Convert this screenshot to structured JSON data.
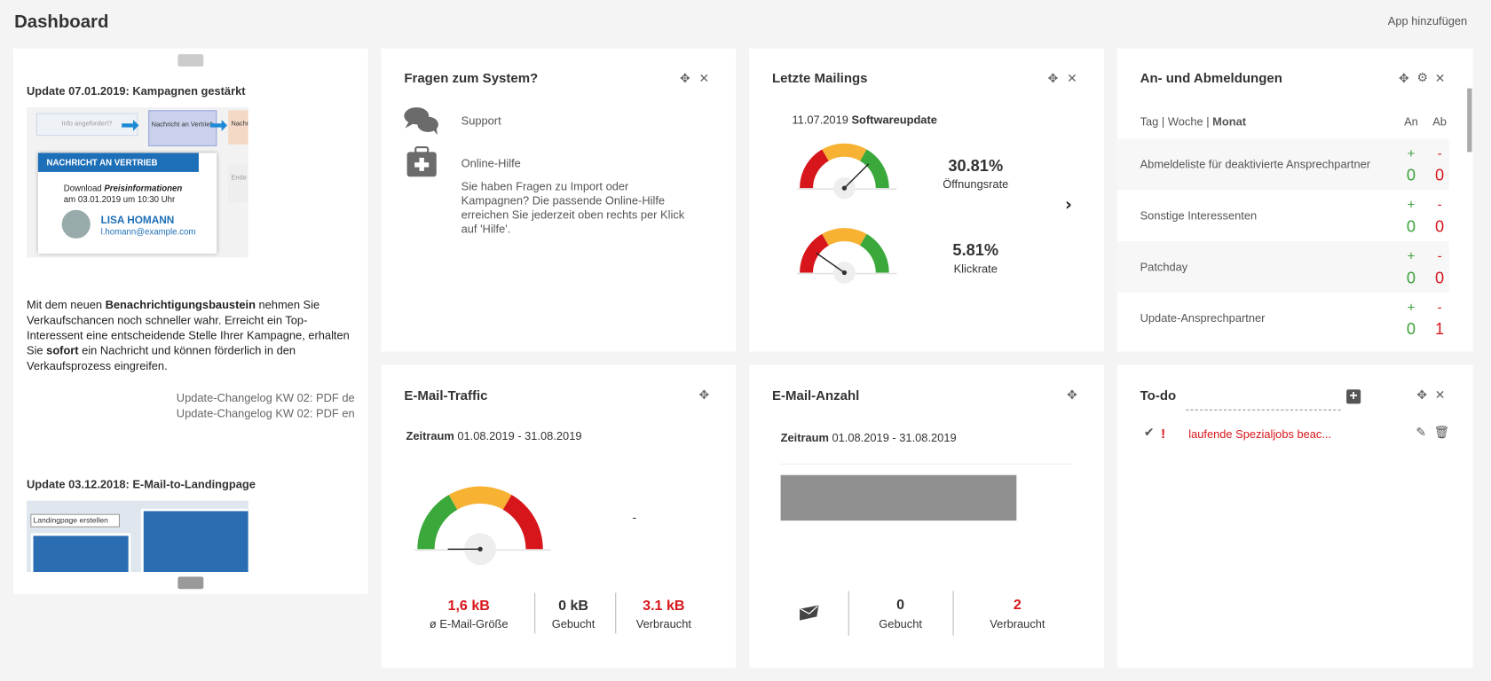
{
  "header": {
    "title": "Dashboard",
    "add_app": "App hinzufügen"
  },
  "news": {
    "items": [
      {
        "title": "Update 07.01.2019: Kampagnen gestärkt",
        "image": {
          "flow": [
            "Info angefordert?",
            "Nachricht an Vertrieb",
            "Nachr",
            "Ende"
          ],
          "box_title": "NACHRICHT AN VERTRIEB",
          "download": "Download",
          "download_em": "Preisinformationen",
          "date": "am 03.01.2019 um 10:30 Uhr",
          "name": "LISA HOMANN",
          "email": "l.homann@example.com"
        },
        "body": [
          "Mit dem neuen ",
          "Benachrichtigungsbaustein",
          " nehmen Sie Verkaufschancen noch schneller wahr. Erreicht ein Top-Interessent eine entscheidende Stelle Ihrer Kampagne, erhalten Sie ",
          "sofort",
          " ein Nachricht und können förderlich in den Verkaufsprozess eingreifen."
        ],
        "links": [
          "Update-Changelog KW 02: PDF de",
          "Update-Changelog KW 02: PDF en"
        ]
      },
      {
        "title": "Update 03.12.2018: E-Mail-to-Landingpage",
        "image_text": "Landingpage erstellen"
      }
    ]
  },
  "help": {
    "title": "Fragen zum System?",
    "support": "Support",
    "online_help": "Online-Hilfe",
    "description": "Sie haben Fragen zu Import oder Kampagnen? Die passende Online-Hilfe erreichen Sie jederzeit oben rechts per Klick auf 'Hilfe'."
  },
  "mailings": {
    "title": "Letzte Mailings",
    "date": "11.07.2019",
    "name": "Softwareupdate",
    "metrics": [
      {
        "value": "30.81%",
        "label": "Öffnungsrate"
      },
      {
        "value": "5.81%",
        "label": "Klickrate"
      }
    ]
  },
  "subscriptions": {
    "title": "An- und Abmeldungen",
    "periods": [
      "Tag",
      "Woche",
      "Monat"
    ],
    "separator": "|",
    "columns": [
      "An",
      "Ab"
    ],
    "signs": [
      "+",
      "-"
    ],
    "rows": [
      {
        "name": "Abmeldeliste für deaktivierte Ansprechpartner",
        "an": "0",
        "ab": "0"
      },
      {
        "name": "Sonstige Interessenten",
        "an": "0",
        "ab": "0"
      },
      {
        "name": "Patchday",
        "an": "0",
        "ab": "0"
      },
      {
        "name": "Update-Ansprechpartner",
        "an": "0",
        "ab": "1"
      }
    ]
  },
  "traffic": {
    "title": "E-Mail-Traffic",
    "period_label": "Zeitraum",
    "period": "01.08.2019 - 31.08.2019",
    "placeholder": "-",
    "stats": [
      {
        "value": "1,6 kB",
        "label": "ø E-Mail-Größe"
      },
      {
        "value": "0 kB",
        "label": "Gebucht"
      },
      {
        "value": "3.1 kB",
        "label": "Verbraucht"
      }
    ]
  },
  "count": {
    "title": "E-Mail-Anzahl",
    "period_label": "Zeitraum",
    "period": "01.08.2019 - 31.08.2019",
    "stats": [
      {
        "value": "0",
        "label": "Gebucht"
      },
      {
        "value": "2",
        "label": "Verbraucht"
      }
    ]
  },
  "todo": {
    "title": "To-do",
    "items": [
      "laufende Spezialjobs beac..."
    ]
  }
}
